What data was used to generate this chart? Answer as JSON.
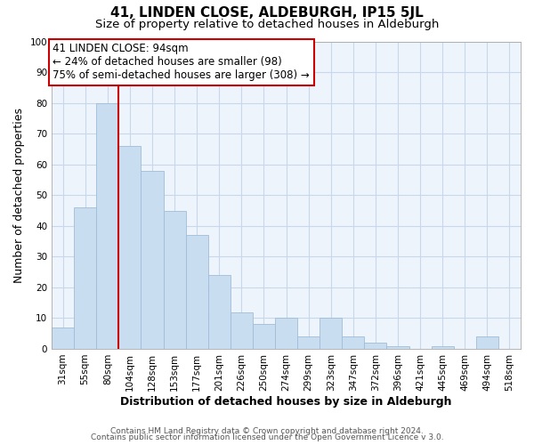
{
  "title": "41, LINDEN CLOSE, ALDEBURGH, IP15 5JL",
  "subtitle": "Size of property relative to detached houses in Aldeburgh",
  "xlabel": "Distribution of detached houses by size in Aldeburgh",
  "ylabel": "Number of detached properties",
  "footer_line1": "Contains HM Land Registry data © Crown copyright and database right 2024.",
  "footer_line2": "Contains public sector information licensed under the Open Government Licence v 3.0.",
  "categories": [
    "31sqm",
    "55sqm",
    "80sqm",
    "104sqm",
    "128sqm",
    "153sqm",
    "177sqm",
    "201sqm",
    "226sqm",
    "250sqm",
    "274sqm",
    "299sqm",
    "323sqm",
    "347sqm",
    "372sqm",
    "396sqm",
    "421sqm",
    "445sqm",
    "469sqm",
    "494sqm",
    "518sqm"
  ],
  "values": [
    7,
    46,
    80,
    66,
    58,
    45,
    37,
    24,
    12,
    8,
    10,
    4,
    10,
    4,
    2,
    1,
    0,
    1,
    0,
    4,
    0
  ],
  "bar_color": "#c8ddf0",
  "bar_edge_color": "#a0bcd8",
  "grid_color": "#c8d8ec",
  "bg_color": "#eef4fb",
  "annotation_box_text_line1": "41 LINDEN CLOSE: 94sqm",
  "annotation_box_text_line2": "← 24% of detached houses are smaller (98)",
  "annotation_box_text_line3": "75% of semi-detached houses are larger (308) →",
  "vline_color": "#cc0000",
  "ylim": [
    0,
    100
  ],
  "annotation_box_color": "#ffffff",
  "annotation_box_edge_color": "#cc0000",
  "title_fontsize": 11,
  "subtitle_fontsize": 9.5,
  "axis_label_fontsize": 9,
  "tick_fontsize": 7.5,
  "annotation_fontsize": 8.5,
  "footer_fontsize": 6.5
}
